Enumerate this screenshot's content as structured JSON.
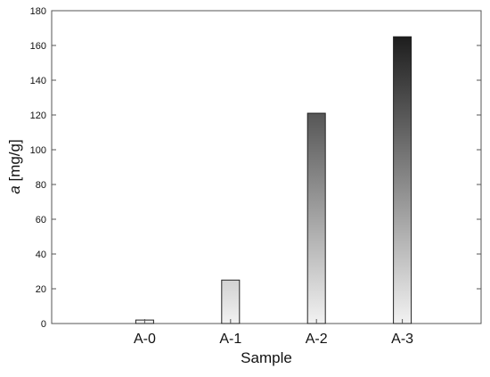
{
  "chart_data": {
    "type": "bar",
    "categories": [
      "A-0",
      "A-1",
      "A-2",
      "A-3"
    ],
    "values": [
      2,
      25,
      121,
      165
    ],
    "xlabel": "Sample",
    "ylabel_symbol": "a",
    "ylabel_unit": " [mg/g]",
    "ylim": [
      0,
      180
    ],
    "yticks": [
      0,
      20,
      40,
      60,
      80,
      100,
      120,
      140,
      160,
      180
    ],
    "grid": false,
    "legend": "none",
    "bar_fill": "vertical gradient, light gray at base to black at top",
    "colors": {
      "gradient_light": "#f2f2f2",
      "gradient_dark": "#0a0a0a",
      "frame": "#555555",
      "bar_edge": "#222222"
    }
  }
}
